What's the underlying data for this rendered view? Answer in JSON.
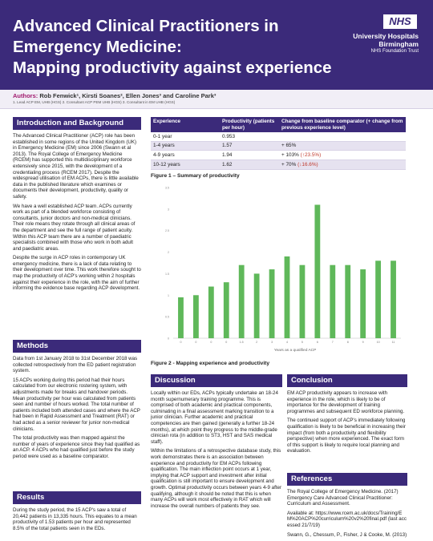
{
  "header": {
    "title_lines": [
      "Advanced Clinical Practitioners in",
      "Emergency Medicine:",
      "Mapping productivity against experience"
    ],
    "nhs_logo": "NHS",
    "trust_line1": "University Hospitals",
    "trust_line2": "Birmingham",
    "trust_line3": "NHS Foundation Trust"
  },
  "authors": {
    "label": "Authors:",
    "names": "Rob Fenwick¹, Kirsti Soanes², Ellen Jones³ and Caroline Park³",
    "affiliations": "1. Lead ACP EM, UHB (HGS) 2. Consultant ACP PEM UHB (HGS) 3. Consultant in EM UHB (HGS)"
  },
  "intro": {
    "heading": "Introduction and Background",
    "p1": "The Advanced Clinical Practitioner (ACP) role has been established in some regions of the United Kingdom (UK) in Emergency Medicine (EM) since 2006 (Swann et al 2013). The Royal College of Emergency Medicine (RCEM) has supported this multidisciplinary workforce extensively since 2015, with the development of a credentialing process (RCEM 2017). Despite the widespread utilisation of EM ACPs, there is little available data in the published literature which examines or documents their development, productivity, quality or safety.",
    "p2": "We have a well established ACP team. ACPs currently work as part of a blended workforce consisting of consultants, junior doctors and non-medical clinicians. Their role means they rotate through all clinical areas of the department and see the full range of patient acuity. Within this ACP team there are a number of paediatric specialists combined with those who work in both adult and paediatric areas.",
    "p3": "Despite the surge in ACP roles in contemporary UK emergency medicine, there is a lack of data relating to their development over time. This work therefore sought to map the productivity of ACP's working within 2 hospitals against their experience in the role, with the aim of further informing the evidence base regarding ACP development."
  },
  "methods": {
    "heading": "Methods",
    "p1": "Data from 1st January 2018 to 31st December 2018 was collected retrospectively from the ED patient registration system.",
    "p2": "15 ACPs working during this period had their hours calculated from our electronic rostering system, with adjustments made for breaks and handover periods. Mean productivity per hour was calculated from patients seen and number of hours worked. The total number of patients included both attended cases and where the ACP had been in Rapid Assessment and Treatment (RAT) or had acted as a senior reviewer for junior non-medical clinicians.",
    "p3": "The total productivity was then mapped against the number of years of experience since they had qualified as an ACP. 4 ACPs who had qualified just before the study period were used as a baseline comparator."
  },
  "results": {
    "heading": "Results",
    "p1": "During the study period, the 15 ACP's saw a total of 20,442 patients in 13,335 hours. This equates to a mean productivity of 1.53 patients per hour and represented 8.5% of the total patients seen in the EDs."
  },
  "table": {
    "headers": [
      "Experience",
      "Productivity (patients per hour)",
      "Change from baseline comparator (+ change from previous experience level)"
    ],
    "rows": [
      {
        "experience": "0-1 year",
        "productivity": "0.953",
        "change": "",
        "change_extra": ""
      },
      {
        "experience": "1-4 years",
        "productivity": "1.57",
        "change": "+ 65%",
        "change_extra": ""
      },
      {
        "experience": "4-9 years",
        "productivity": "1.94",
        "change": "+ 103% ",
        "change_extra": "(↑23.5%)"
      },
      {
        "experience": "10-12 years",
        "productivity": "1.62",
        "change": "+ 70% ",
        "change_extra": "(↓16.6%)"
      }
    ],
    "caption": "Figure 1 – Summary of productivity"
  },
  "figure2": {
    "caption": "Figure 2 - Mapping experience and productivity"
  },
  "chart_data": {
    "type": "bar",
    "categories": [
      "0",
      "0",
      "0",
      "0",
      "1.5",
      "2",
      "3",
      "4",
      "5",
      "6",
      "7",
      "8",
      "9",
      "10",
      "11"
    ],
    "values": [
      0.95,
      1.0,
      1.2,
      1.3,
      1.7,
      1.5,
      1.6,
      1.9,
      1.7,
      3.1,
      1.7,
      1.7,
      1.6,
      1.8,
      1.8
    ],
    "xlabel": "Years as a qualified ACP",
    "ylabel": "",
    "ylim": [
      0,
      3.5
    ],
    "yticks": [
      "0",
      "0.5",
      "1",
      "1.5",
      "2",
      "2.5",
      "3",
      "3.5"
    ],
    "bar_color": "#5fb85a",
    "grid": false
  },
  "discussion": {
    "heading": "Discussion",
    "p1": "Locally within our EDs, ACPs typically undertake an 18-24 month supernumerary training programme. This is comprised of both academic and practical components, culminating in a final assessment marking transition to a junior clinician. Further academic and practical competencies are then gained (generally a further 18-24 months), at which point they progress to the middle-grade clinician rota (in addition to ST3, HST and SAS medical staff).",
    "p2": "Within the limitations of a retrospective database study, this work demonstrates there is an association between experience and productivity for EM ACPs following qualification. The main inflection point occurs at 1 year, implying that ACP support and investment after initial qualification is still important to ensure development and growth. Optimal productivity occurs between years 4-9 after qualifying, although it should be noted that this is when many ACPs will work most effectively in RAT which will increase the overall numbers of patients they see."
  },
  "conclusion": {
    "heading": "Conclusion",
    "p1": "EM ACP productivity appears to increase with experience in the role, which is likely to be of importance for the development of training programmes and subsequent ED workforce planning.",
    "p2": "The continued support of ACP's immediately following qualification is likely to be beneficial in increasing their impact (from both a productivity and flexibility perspective) when more experienced. The exact form of this support is likely to require local planning and evaluation."
  },
  "references": {
    "heading": "References",
    "p1": "The Royal College of Emergency Medicine. (2017) Emergency Care Advanced Clinical Practitioner: Curriculum and Assessment.",
    "p2": "Available at: https://www.rcem.ac.uk/docs/Training/EM%20ACP%20curriculum%20v2%20final.pdf (last accessed 21/7/19)",
    "p3": "Swann, G., Chessum, P., Fisher, J & Cooke, M. (2013)"
  },
  "colors": {
    "primary": "#3b2a7a",
    "accent": "#a0196d",
    "bar": "#5fb85a",
    "table_shade": "#e6e2f0"
  }
}
